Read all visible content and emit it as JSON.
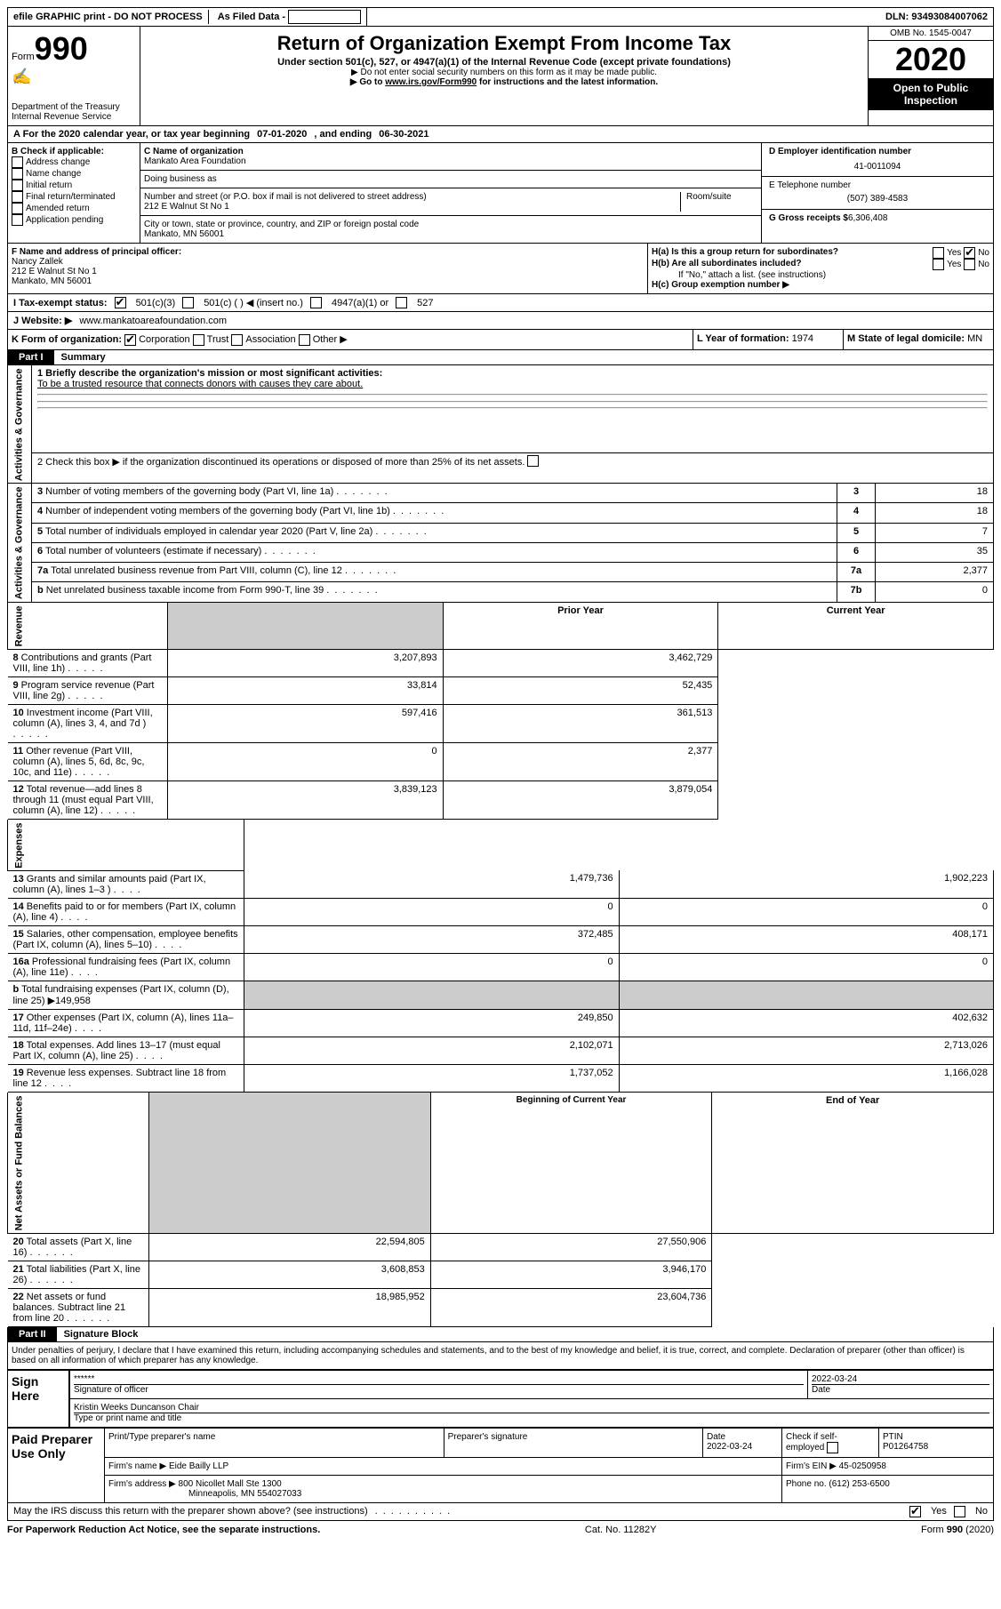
{
  "top_bar": {
    "efile": "efile GRAPHIC print - DO NOT PROCESS",
    "as_filed": "As Filed Data -",
    "dln_label": "DLN:",
    "dln": "93493084007062"
  },
  "header": {
    "form_label": "Form",
    "form_num": "990",
    "dept": "Department of the Treasury",
    "irs": "Internal Revenue Service",
    "title": "Return of Organization Exempt From Income Tax",
    "sub": "Under section 501(c), 527, or 4947(a)(1) of the Internal Revenue Code (except private foundations)",
    "sub2a": "▶ Do not enter social security numbers on this form as it may be made public.",
    "sub2b_pre": "▶ Go to ",
    "sub2b_link": "www.irs.gov/Form990",
    "sub2b_post": " for instructions and the latest information.",
    "omb": "OMB No. 1545-0047",
    "year": "2020",
    "inspection": "Open to Public Inspection"
  },
  "line_a": {
    "text_pre": "A  For the 2020 calendar year, or tax year beginning ",
    "begin": "07-01-2020",
    "mid": "   , and ending ",
    "end": "06-30-2021"
  },
  "section_b": {
    "label": "B Check if applicable:",
    "opts": [
      "Address change",
      "Name change",
      "Initial return",
      "Final return/terminated",
      "Amended return",
      "Application pending"
    ]
  },
  "section_c": {
    "name_label": "C Name of organization",
    "name": "Mankato Area Foundation",
    "dba_label": "Doing business as",
    "addr_label": "Number and street (or P.O. box if mail is not delivered to street address)",
    "room_label": "Room/suite",
    "addr": "212 E Walnut St No 1",
    "city_label": "City or town, state or province, country, and ZIP or foreign postal code",
    "city": "Mankato, MN  56001"
  },
  "section_d": {
    "label": "D Employer identification number",
    "ein": "41-0011094",
    "e_label": "E Telephone number",
    "phone": "(507) 389-4583",
    "g_label": "G Gross receipts $",
    "gross": "6,306,408"
  },
  "section_f": {
    "label": "F  Name and address of principal officer:",
    "name": "Nancy Zallek",
    "addr": "212 E Walnut St No 1",
    "city": "Mankato, MN  56001"
  },
  "section_h": {
    "ha": "H(a)  Is this a group return for subordinates?",
    "hb": "H(b)  Are all subordinates included?",
    "hb_note": "If \"No,\" attach a list. (see instructions)",
    "hc": "H(c)  Group exemption number ▶",
    "yes": "Yes",
    "no": "No"
  },
  "line_i": {
    "label": "I   Tax-exempt status:",
    "opts": [
      "501(c)(3)",
      "501(c) (  ) ◀ (insert no.)",
      "4947(a)(1) or",
      "527"
    ]
  },
  "line_j": {
    "label": "J   Website: ▶",
    "value": "www.mankatoareafoundation.com"
  },
  "line_k": {
    "label": "K Form of organization:",
    "opts": [
      "Corporation",
      "Trust",
      "Association",
      "Other ▶"
    ]
  },
  "line_l": {
    "label": "L Year of formation:",
    "value": "1974"
  },
  "line_m": {
    "label": "M State of legal domicile:",
    "value": "MN"
  },
  "part1": {
    "num": "Part I",
    "title": "Summary",
    "q1_label": "1 Briefly describe the organization's mission or most significant activities:",
    "q1_value": "To be a trusted resource that connects donors with causes they care about.",
    "q2": "2   Check this box ▶          if the organization discontinued its operations or disposed of more than 25% of its net assets.",
    "rows_ag": [
      {
        "n": "3",
        "label": "Number of voting members of the governing body (Part VI, line 1a)",
        "box": "3",
        "val": "18"
      },
      {
        "n": "4",
        "label": "Number of independent voting members of the governing body (Part VI, line 1b)",
        "box": "4",
        "val": "18"
      },
      {
        "n": "5",
        "label": "Total number of individuals employed in calendar year 2020 (Part V, line 2a)",
        "box": "5",
        "val": "7"
      },
      {
        "n": "6",
        "label": "Total number of volunteers (estimate if necessary)",
        "box": "6",
        "val": "35"
      },
      {
        "n": "7a",
        "label": "Total unrelated business revenue from Part VIII, column (C), line 12",
        "box": "7a",
        "val": "2,377"
      },
      {
        "n": "b",
        "label": "Net unrelated business taxable income from Form 990-T, line 39",
        "box": "7b",
        "val": "0"
      }
    ],
    "prior_year": "Prior Year",
    "current_year": "Current Year",
    "rows_rev": [
      {
        "n": "8",
        "label": "Contributions and grants (Part VIII, line 1h)",
        "py": "3,207,893",
        "cy": "3,462,729"
      },
      {
        "n": "9",
        "label": "Program service revenue (Part VIII, line 2g)",
        "py": "33,814",
        "cy": "52,435"
      },
      {
        "n": "10",
        "label": "Investment income (Part VIII, column (A), lines 3, 4, and 7d )",
        "py": "597,416",
        "cy": "361,513"
      },
      {
        "n": "11",
        "label": "Other revenue (Part VIII, column (A), lines 5, 6d, 8c, 9c, 10c, and 11e)",
        "py": "0",
        "cy": "2,377"
      },
      {
        "n": "12",
        "label": "Total revenue—add lines 8 through 11 (must equal Part VIII, column (A), line 12)",
        "py": "3,839,123",
        "cy": "3,879,054"
      }
    ],
    "rows_exp": [
      {
        "n": "13",
        "label": "Grants and similar amounts paid (Part IX, column (A), lines 1–3 )",
        "py": "1,479,736",
        "cy": "1,902,223"
      },
      {
        "n": "14",
        "label": "Benefits paid to or for members (Part IX, column (A), line 4)",
        "py": "0",
        "cy": "0"
      },
      {
        "n": "15",
        "label": "Salaries, other compensation, employee benefits (Part IX, column (A), lines 5–10)",
        "py": "372,485",
        "cy": "408,171"
      },
      {
        "n": "16a",
        "label": "Professional fundraising fees (Part IX, column (A), line 11e)",
        "py": "0",
        "cy": "0"
      },
      {
        "n": "b",
        "label": "Total fundraising expenses (Part IX, column (D), line 25) ▶149,958",
        "py": "",
        "cy": "",
        "grey": true
      },
      {
        "n": "17",
        "label": "Other expenses (Part IX, column (A), lines 11a–11d, 11f–24e)",
        "py": "249,850",
        "cy": "402,632"
      },
      {
        "n": "18",
        "label": "Total expenses. Add lines 13–17 (must equal Part IX, column (A), line 25)",
        "py": "2,102,071",
        "cy": "2,713,026"
      },
      {
        "n": "19",
        "label": "Revenue less expenses. Subtract line 18 from line 12",
        "py": "1,737,052",
        "cy": "1,166,028"
      }
    ],
    "bocy": "Beginning of Current Year",
    "eoy": "End of Year",
    "rows_na": [
      {
        "n": "20",
        "label": "Total assets (Part X, line 16)",
        "py": "22,594,805",
        "cy": "27,550,906"
      },
      {
        "n": "21",
        "label": "Total liabilities (Part X, line 26)",
        "py": "3,608,853",
        "cy": "3,946,170"
      },
      {
        "n": "22",
        "label": "Net assets or fund balances. Subtract line 21 from line 20",
        "py": "18,985,952",
        "cy": "23,604,736"
      }
    ],
    "vert_ag": "Activities & Governance",
    "vert_rev": "Revenue",
    "vert_exp": "Expenses",
    "vert_na": "Net Assets or Fund Balances"
  },
  "part2": {
    "num": "Part II",
    "title": "Signature Block",
    "perjury": "Under penalties of perjury, I declare that I have examined this return, including accompanying schedules and statements, and to the best of my knowledge and belief, it is true, correct, and complete. Declaration of preparer (other than officer) is based on all information of which preparer has any knowledge.",
    "sign_here": "Sign Here",
    "sig_stars": "******",
    "sig_officer": "Signature of officer",
    "sig_date": "2022-03-24",
    "date_label": "Date",
    "officer_name": "Kristin Weeks Duncanson Chair",
    "officer_label": "Type or print name and title",
    "paid": "Paid Preparer Use Only",
    "p_name_label": "Print/Type preparer's name",
    "p_sig_label": "Preparer's signature",
    "p_date": "2022-03-24",
    "p_check": "Check          if self-employed",
    "ptin_label": "PTIN",
    "ptin": "P01264758",
    "firm_name_label": "Firm's name    ▶",
    "firm_name": "Eide Bailly LLP",
    "firm_ein_label": "Firm's EIN ▶",
    "firm_ein": "45-0250958",
    "firm_addr_label": "Firm's address ▶",
    "firm_addr": "800 Nicollet Mall Ste 1300",
    "firm_city": "Minneapolis, MN  554027033",
    "phone_label": "Phone no.",
    "phone": "(612) 253-6500",
    "discuss": "May the IRS discuss this return with the preparer shown above? (see instructions)"
  },
  "footer": {
    "left": "For Paperwork Reduction Act Notice, see the separate instructions.",
    "mid": "Cat. No. 11282Y",
    "right": "Form 990 (2020)"
  }
}
